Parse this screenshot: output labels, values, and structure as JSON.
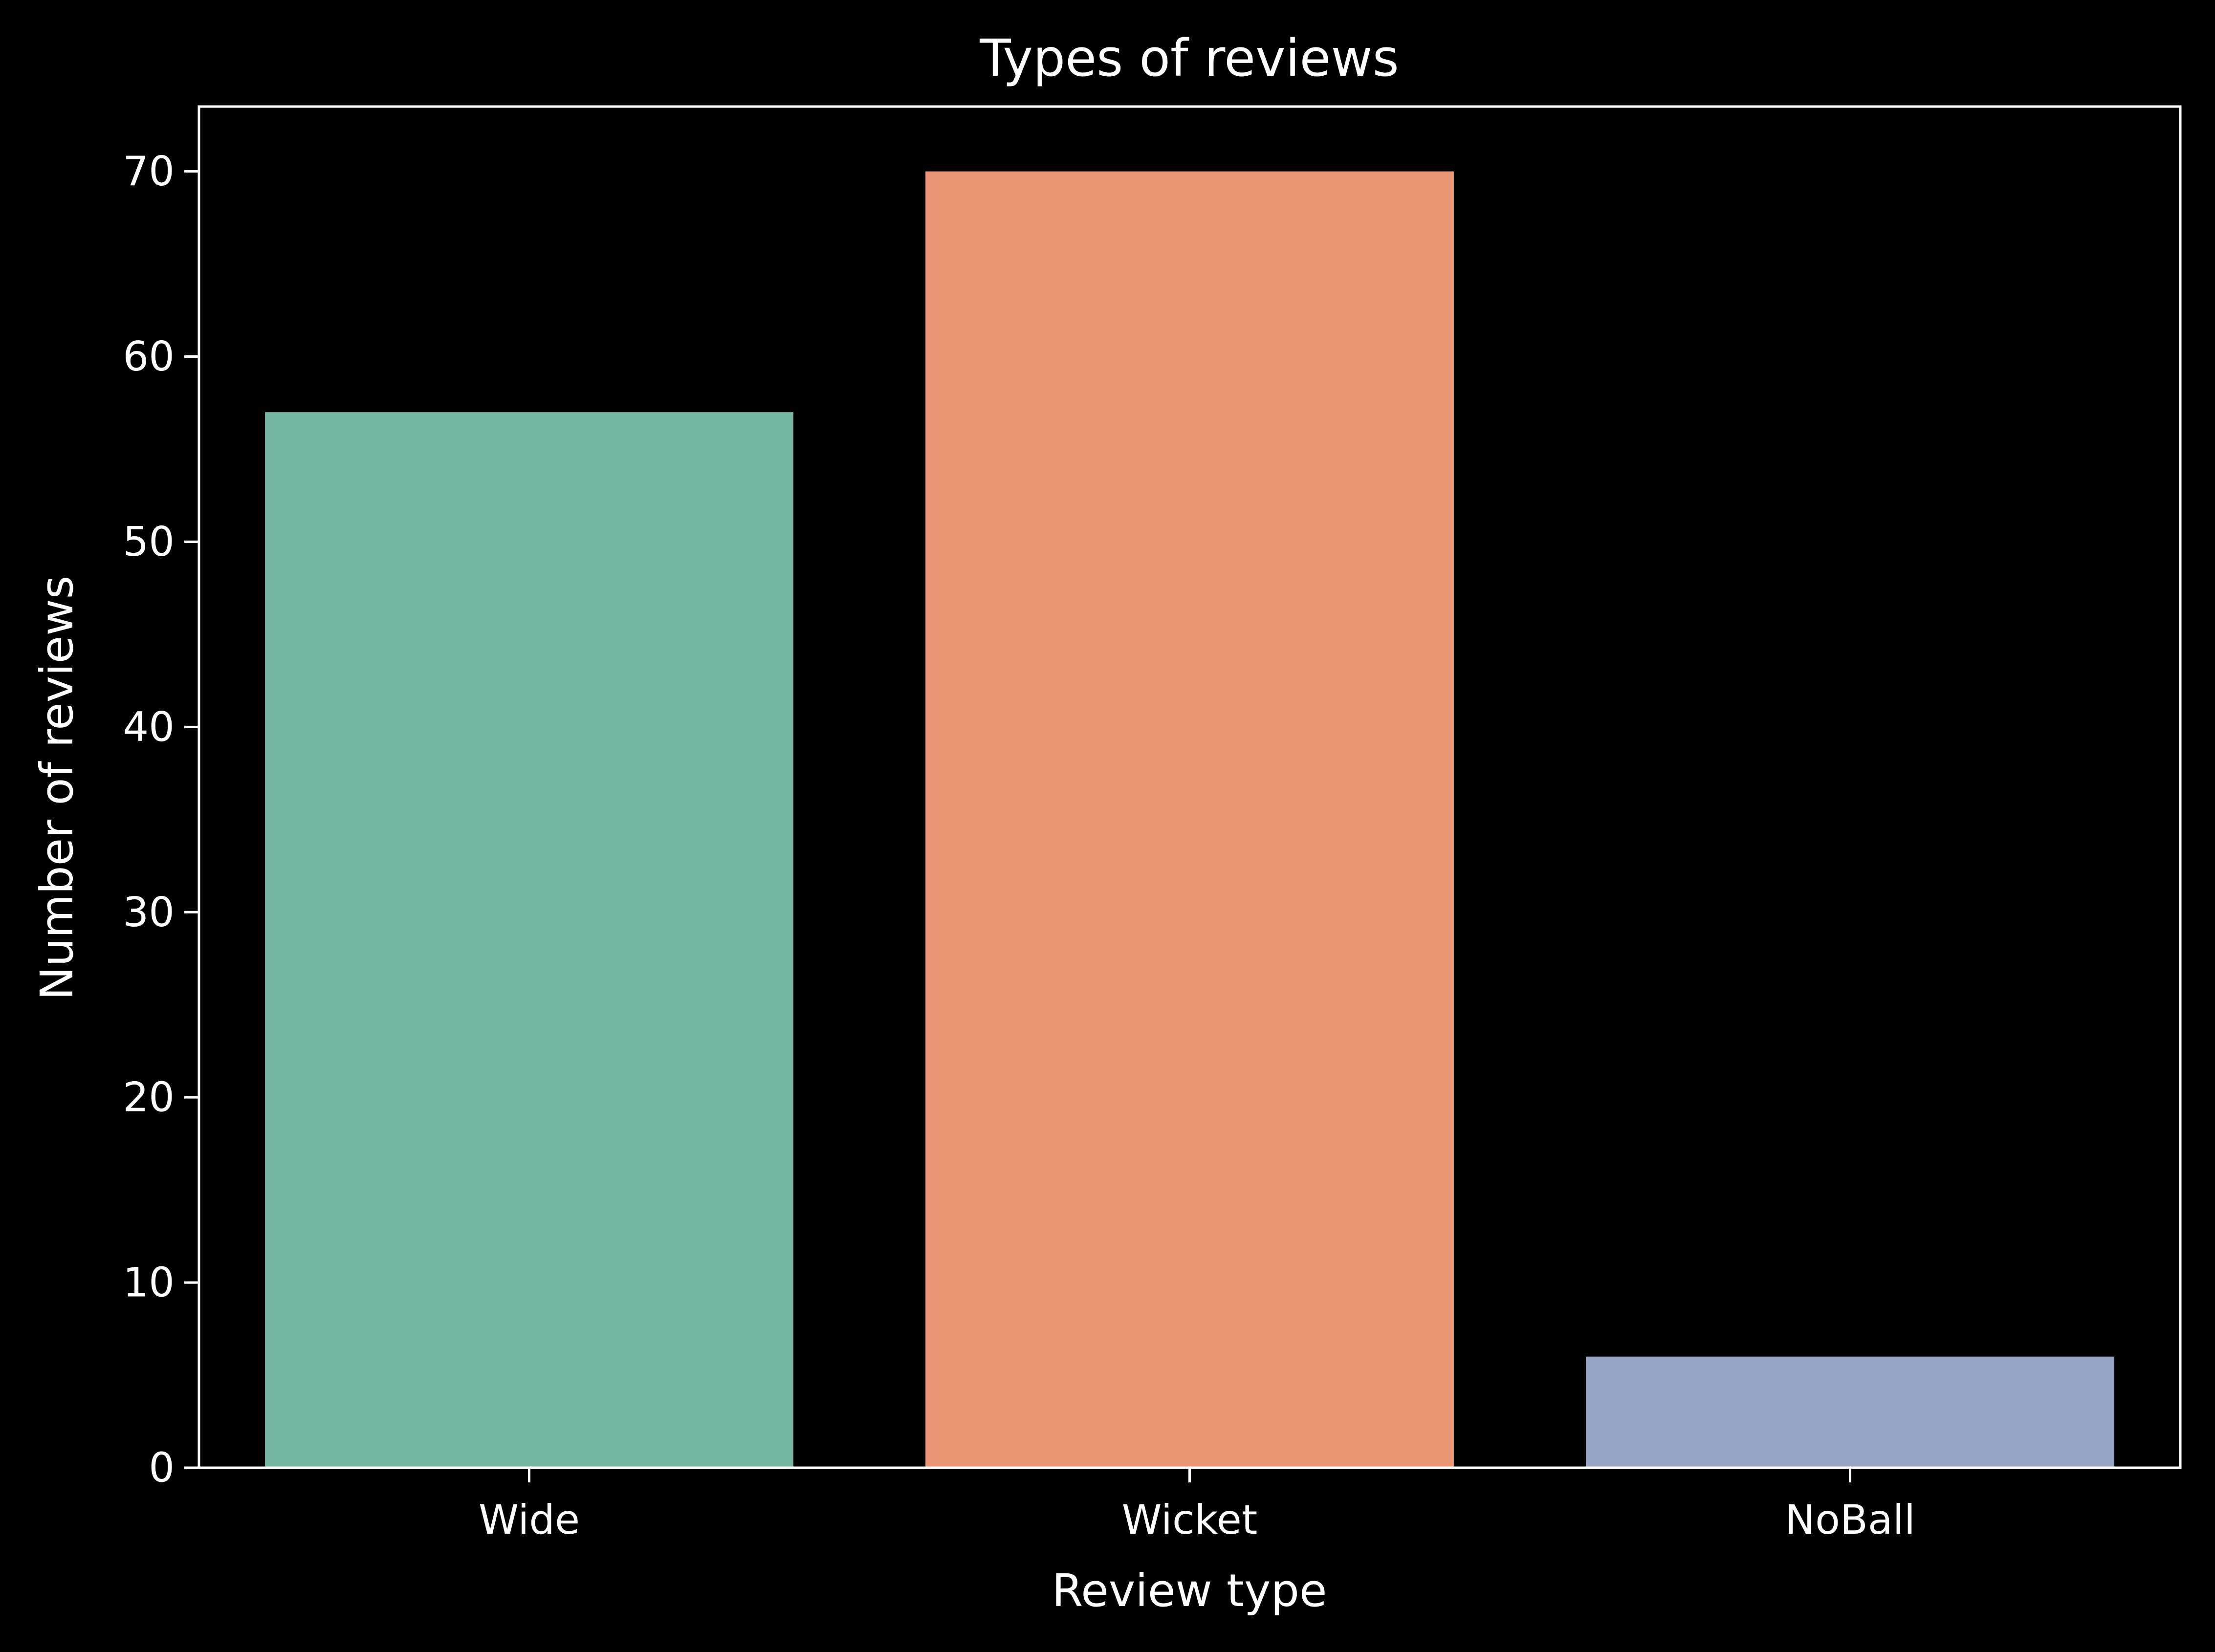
{
  "chart_data": {
    "type": "bar",
    "title": "Types of reviews",
    "xlabel": "Review type",
    "ylabel": "Number of reviews",
    "categories": [
      "Wide",
      "Wicket",
      "NoBall"
    ],
    "values": [
      57,
      70,
      6
    ],
    "colors": [
      "#76b5a3",
      "#e99676",
      "#96a4c6"
    ],
    "ylim": [
      0,
      73.5
    ],
    "yticks": [
      0,
      10,
      20,
      30,
      40,
      50,
      60,
      70
    ],
    "grid": false,
    "legend": "none",
    "background": "#000000",
    "foreground": "#ffffff"
  }
}
